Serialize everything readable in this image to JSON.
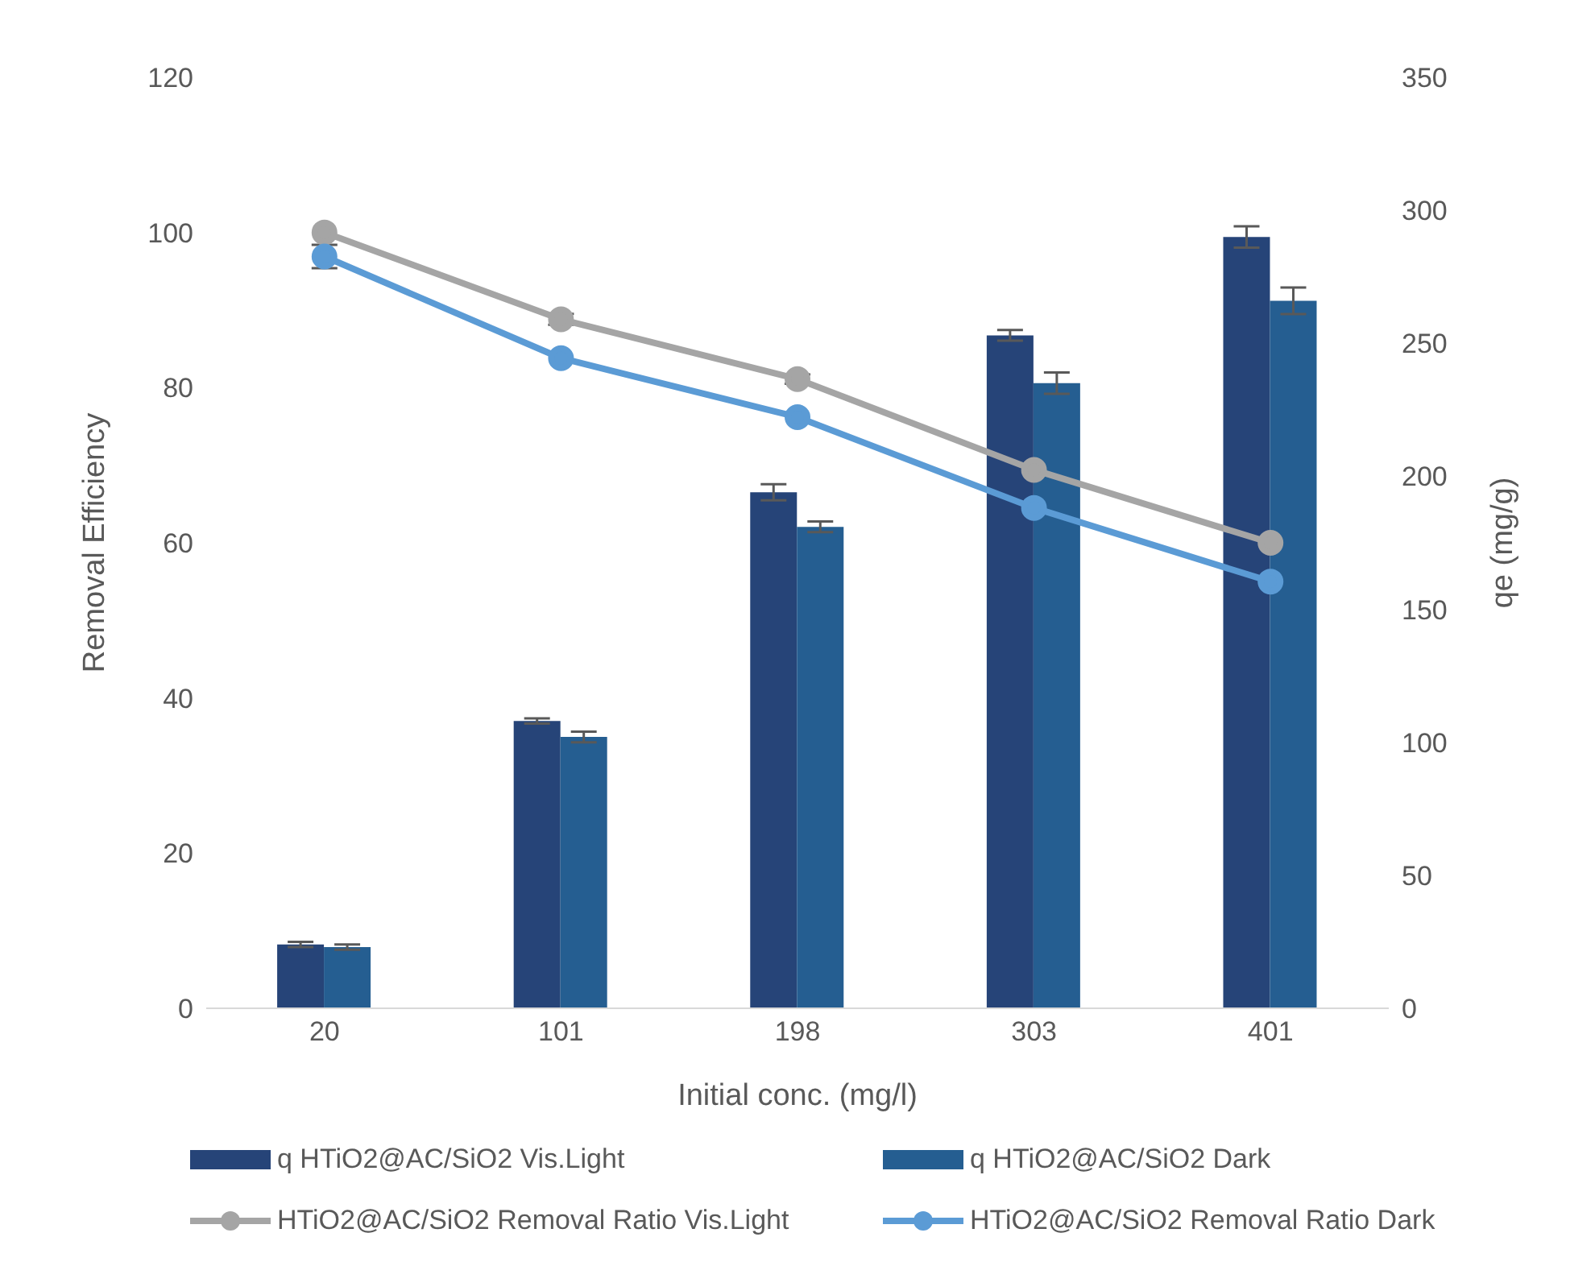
{
  "chart_data": {
    "type": "bar",
    "xlabel": "Initial conc. (mg/l)",
    "ylabel": "Removal Efficiency",
    "y2label": "qe (mg/g)",
    "categories": [
      "20",
      "101",
      "198",
      "303",
      "401"
    ],
    "series": [
      {
        "name": "q HTiO2@AC/SiO2 Vis.Light",
        "axis": "y2",
        "color": "#264478",
        "values": [
          24,
          108,
          194,
          253,
          290
        ],
        "errors": [
          1,
          1,
          3,
          2,
          4
        ]
      },
      {
        "name": "q HTiO2@AC/SiO2 Dark",
        "axis": "y2",
        "color": "#255e91",
        "values": [
          23,
          102,
          181,
          235,
          266
        ],
        "errors": [
          1,
          2,
          2,
          4,
          5
        ]
      },
      {
        "name": "HTiO2@AC/SiO2 Removal Ratio Vis.Light",
        "type": "line",
        "color": "#a5a5a5",
        "values": [
          100,
          88.8,
          81.1,
          69.4,
          60
        ],
        "errors": [
          null,
          0.7,
          0.6,
          null,
          null
        ]
      },
      {
        "name": "HTiO2@AC/SiO2 Removal Ratio Dark",
        "type": "line",
        "color": "#5b9bd5",
        "values": [
          96.9,
          83.8,
          76.2,
          64.5,
          55
        ],
        "errors": [
          1.5,
          null,
          null,
          null,
          null
        ]
      }
    ],
    "ylim": [
      0,
      120
    ],
    "yticks": [
      0,
      20,
      40,
      60,
      80,
      100,
      120
    ],
    "y2lim": [
      0,
      350
    ],
    "y2ticks": [
      0,
      50,
      100,
      150,
      200,
      250,
      300,
      350
    ],
    "grid": false,
    "legend": "bottom",
    "marker": "circle"
  }
}
